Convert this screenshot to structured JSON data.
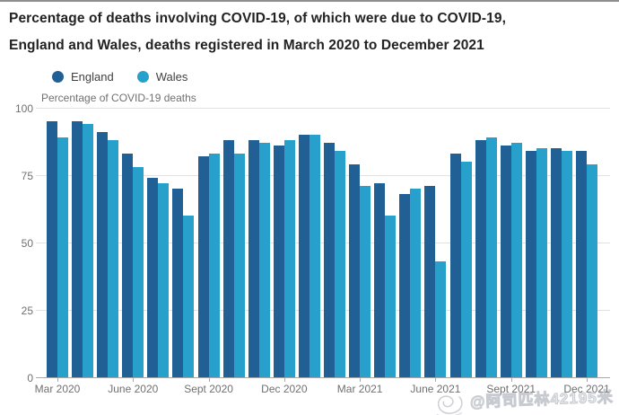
{
  "page": {
    "title_line1": "Percentage of deaths involving COVID-19, of which were due to COVID-19,",
    "title_line2": "England and Wales, deaths registered in March 2020 to December 2021"
  },
  "legend": {
    "items": [
      {
        "label": "England",
        "color": "#206095"
      },
      {
        "label": "Wales",
        "color": "#27a0cc"
      }
    ]
  },
  "chart_data": {
    "type": "bar",
    "title": "Percentage of deaths involving COVID-19, of which were due to COVID-19, England and Wales, deaths registered in March 2020 to December 2021",
    "axis_title": "Percentage of COVID-19 deaths",
    "categories": [
      "Mar 2020",
      "Apr 2020",
      "May 2020",
      "June 2020",
      "July 2020",
      "Aug 2020",
      "Sept 2020",
      "Oct 2020",
      "Nov 2020",
      "Dec 2020",
      "Jan 2021",
      "Feb 2021",
      "Mar 2021",
      "Apr 2021",
      "May 2021",
      "June 2021",
      "July 2021",
      "Aug 2021",
      "Sept 2021",
      "Oct 2021",
      "Nov 2021",
      "Dec 2021"
    ],
    "series": [
      {
        "name": "England",
        "color": "#206095",
        "values": [
          95,
          95,
          91,
          83,
          74,
          70,
          82,
          88,
          88,
          86,
          90,
          87,
          79,
          72,
          68,
          71,
          83,
          88,
          86,
          84,
          85,
          84
        ]
      },
      {
        "name": "Wales",
        "color": "#27a0cc",
        "values": [
          89,
          94,
          88,
          78,
          72,
          60,
          83,
          83,
          87,
          88,
          90,
          84,
          71,
          60,
          70,
          43,
          80,
          89,
          87,
          85,
          84,
          79
        ]
      }
    ],
    "ylim": [
      0,
      100
    ],
    "yticks": [
      0,
      25,
      50,
      75,
      100
    ],
    "xticks_shown": [
      "Mar 2020",
      "June 2020",
      "Sept 2020",
      "Dec 2020",
      "Mar 2021",
      "June 2021",
      "Sept 2021",
      "Dec 2021"
    ],
    "grid": "horizontal-only",
    "legend_position": "top-left"
  },
  "watermark": {
    "text": "@阿司匹林42195米",
    "icon": "spiral-doodle"
  },
  "colors": {
    "england": "#206095",
    "wales": "#27a0cc",
    "gridline": "#e2e2e2",
    "axis_line": "#a8a8a8",
    "muted_text": "#707071",
    "legend_text": "#414042",
    "title_text": "#222222",
    "watermark": "#9aa0ab"
  }
}
